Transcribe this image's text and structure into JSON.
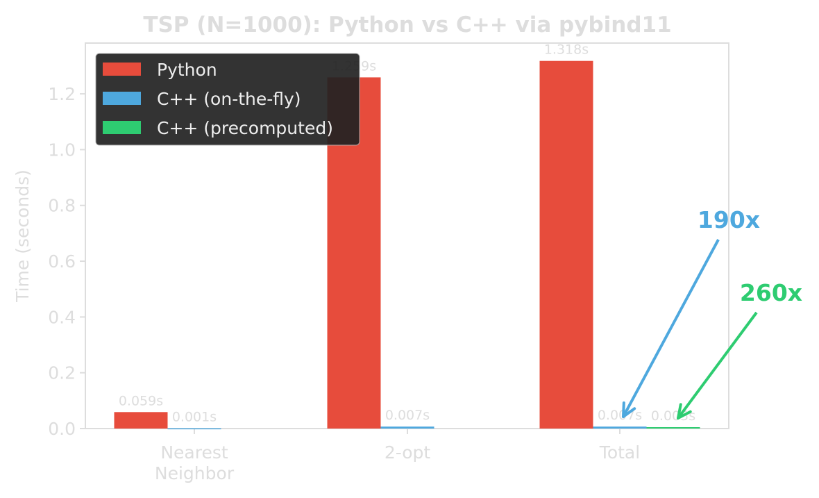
{
  "chart_data": {
    "type": "bar",
    "title": "TSP (N=1000): Python vs C++ via pybind11",
    "xlabel": "",
    "ylabel": "Time (seconds)",
    "ylim": [
      0,
      1.382
    ],
    "yticks": [
      0,
      0.2,
      0.4,
      0.6,
      0.8,
      1.0,
      1.2
    ],
    "ytick_labels": [
      "0.0",
      "0.2",
      "0.4",
      "0.6",
      "0.8",
      "1.0",
      "1.2"
    ],
    "categories": [
      [
        "Nearest",
        "Neighbor"
      ],
      [
        "2-opt"
      ],
      [
        "Total"
      ]
    ],
    "series": [
      {
        "name": "Python",
        "color": "#e74c3c",
        "values": [
          0.059,
          1.259,
          1.318
        ],
        "labels": [
          "0.059s",
          "1.259s",
          "1.318s"
        ]
      },
      {
        "name": "C++ (on-the-fly)",
        "color": "#4ea8de",
        "values": [
          0.001,
          0.007,
          0.007
        ],
        "labels": [
          "0.001s",
          "0.007s",
          "0.007s"
        ]
      },
      {
        "name": "C++ (precomputed)",
        "color": "#2ecc71",
        "values": [
          null,
          null,
          0.005
        ],
        "labels": [
          null,
          null,
          "0.005s"
        ]
      }
    ],
    "legend": "top-left",
    "grid": false,
    "annotations": [
      {
        "text": "190x",
        "color": "#4ea8de",
        "target_category": 2,
        "target_series": 1
      },
      {
        "text": "260x",
        "color": "#2ecc71",
        "target_category": 2,
        "target_series": 2
      }
    ]
  }
}
